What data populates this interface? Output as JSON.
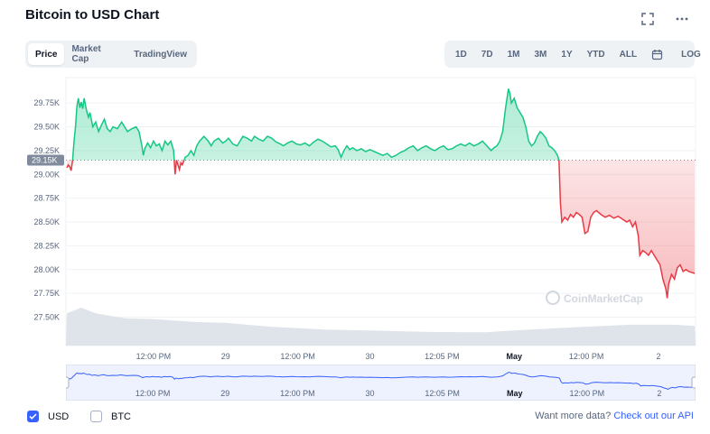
{
  "title": "Bitcoin to USD Chart",
  "icons": {
    "fullscreen": "fullscreen-icon",
    "more": "more-horizontal-icon",
    "calendar": "calendar-icon"
  },
  "tabs": [
    {
      "label": "Price",
      "active": true
    },
    {
      "label": "Market Cap",
      "active": false
    },
    {
      "label": "TradingView",
      "active": false
    }
  ],
  "ranges": [
    "1D",
    "7D",
    "1M",
    "3M",
    "1Y",
    "YTD",
    "ALL"
  ],
  "log_label": "LOG",
  "watermark": "CoinMarketCap",
  "footer": {
    "usd_label": "USD",
    "usd_checked": true,
    "btc_label": "BTC",
    "btc_checked": false,
    "more_text": "Want more data?",
    "more_link": "Check out our API"
  },
  "colors": {
    "up": "#16c784",
    "down": "#ea3943",
    "accent": "#3861fb",
    "volume": "#cfd6e4"
  },
  "chart_data": {
    "type": "line",
    "y_ticks": [
      "29.75K",
      "29.50K",
      "29.25K",
      "29.00K",
      "28.75K",
      "28.50K",
      "28.25K",
      "28.00K",
      "27.75K",
      "27.50K"
    ],
    "y_tick_values": [
      29750,
      29500,
      29250,
      29000,
      28750,
      28500,
      28250,
      28000,
      27750,
      27500
    ],
    "x_ticks": [
      "12:00 PM",
      "29",
      "12:00 PM",
      "30",
      "12:05 PM",
      "May",
      "12:00 PM",
      "2"
    ],
    "x_tick_positions": [
      0.5,
      1.0,
      1.5,
      2.0,
      2.5,
      3.0,
      3.5,
      4.0
    ],
    "x_bold": [
      "May"
    ],
    "reference_price": 29150,
    "reference_label": "29.15K",
    "ylim": [
      27420,
      29960
    ],
    "xlim": [
      -0.1,
      4.25
    ],
    "series": [
      {
        "values": [
          [
            -0.1,
            29070
          ],
          [
            -0.09,
            29100
          ],
          [
            -0.08,
            29080
          ],
          [
            -0.07,
            29040
          ],
          [
            -0.06,
            29150
          ],
          [
            -0.05,
            29350
          ],
          [
            -0.04,
            29500
          ],
          [
            -0.03,
            29720
          ],
          [
            -0.02,
            29800
          ],
          [
            -0.01,
            29700
          ],
          [
            0.0,
            29760
          ],
          [
            0.01,
            29690
          ],
          [
            0.02,
            29800
          ],
          [
            0.03,
            29720
          ],
          [
            0.04,
            29650
          ],
          [
            0.05,
            29600
          ],
          [
            0.06,
            29650
          ],
          [
            0.08,
            29500
          ],
          [
            0.1,
            29550
          ],
          [
            0.12,
            29450
          ],
          [
            0.14,
            29520
          ],
          [
            0.16,
            29580
          ],
          [
            0.18,
            29480
          ],
          [
            0.2,
            29450
          ],
          [
            0.22,
            29500
          ],
          [
            0.25,
            29480
          ],
          [
            0.28,
            29550
          ],
          [
            0.3,
            29500
          ],
          [
            0.32,
            29450
          ],
          [
            0.35,
            29480
          ],
          [
            0.38,
            29500
          ],
          [
            0.4,
            29450
          ],
          [
            0.42,
            29300
          ],
          [
            0.43,
            29200
          ],
          [
            0.44,
            29270
          ],
          [
            0.46,
            29330
          ],
          [
            0.48,
            29280
          ],
          [
            0.5,
            29350
          ],
          [
            0.52,
            29300
          ],
          [
            0.54,
            29320
          ],
          [
            0.56,
            29250
          ],
          [
            0.58,
            29350
          ],
          [
            0.6,
            29310
          ],
          [
            0.62,
            29350
          ],
          [
            0.63,
            29300
          ],
          [
            0.64,
            29250
          ],
          [
            0.65,
            29000
          ],
          [
            0.66,
            29150
          ],
          [
            0.67,
            29100
          ],
          [
            0.68,
            29050
          ],
          [
            0.69,
            29120
          ],
          [
            0.7,
            29100
          ],
          [
            0.72,
            29180
          ],
          [
            0.74,
            29200
          ],
          [
            0.76,
            29250
          ],
          [
            0.78,
            29200
          ],
          [
            0.8,
            29300
          ],
          [
            0.82,
            29350
          ],
          [
            0.85,
            29400
          ],
          [
            0.88,
            29350
          ],
          [
            0.9,
            29300
          ],
          [
            0.92,
            29350
          ],
          [
            0.95,
            29380
          ],
          [
            0.98,
            29330
          ],
          [
            1.0,
            29350
          ],
          [
            1.02,
            29380
          ],
          [
            1.05,
            29320
          ],
          [
            1.08,
            29300
          ],
          [
            1.1,
            29350
          ],
          [
            1.12,
            29400
          ],
          [
            1.15,
            29380
          ],
          [
            1.18,
            29350
          ],
          [
            1.2,
            29400
          ],
          [
            1.23,
            29370
          ],
          [
            1.26,
            29350
          ],
          [
            1.29,
            29400
          ],
          [
            1.32,
            29380
          ],
          [
            1.35,
            29340
          ],
          [
            1.38,
            29320
          ],
          [
            1.4,
            29300
          ],
          [
            1.43,
            29330
          ],
          [
            1.46,
            29350
          ],
          [
            1.49,
            29320
          ],
          [
            1.52,
            29310
          ],
          [
            1.55,
            29330
          ],
          [
            1.58,
            29300
          ],
          [
            1.61,
            29340
          ],
          [
            1.64,
            29370
          ],
          [
            1.67,
            29350
          ],
          [
            1.7,
            29320
          ],
          [
            1.73,
            29290
          ],
          [
            1.76,
            29300
          ],
          [
            1.78,
            29260
          ],
          [
            1.8,
            29180
          ],
          [
            1.82,
            29250
          ],
          [
            1.84,
            29300
          ],
          [
            1.86,
            29260
          ],
          [
            1.88,
            29280
          ],
          [
            1.91,
            29250
          ],
          [
            1.94,
            29270
          ],
          [
            1.97,
            29240
          ],
          [
            2.0,
            29260
          ],
          [
            2.03,
            29240
          ],
          [
            2.06,
            29220
          ],
          [
            2.09,
            29200
          ],
          [
            2.12,
            29220
          ],
          [
            2.15,
            29180
          ],
          [
            2.18,
            29200
          ],
          [
            2.21,
            29230
          ],
          [
            2.24,
            29250
          ],
          [
            2.27,
            29280
          ],
          [
            2.3,
            29300
          ],
          [
            2.33,
            29250
          ],
          [
            2.36,
            29280
          ],
          [
            2.39,
            29300
          ],
          [
            2.42,
            29270
          ],
          [
            2.45,
            29250
          ],
          [
            2.48,
            29280
          ],
          [
            2.51,
            29300
          ],
          [
            2.54,
            29260
          ],
          [
            2.57,
            29270
          ],
          [
            2.6,
            29300
          ],
          [
            2.63,
            29320
          ],
          [
            2.66,
            29300
          ],
          [
            2.69,
            29330
          ],
          [
            2.72,
            29300
          ],
          [
            2.75,
            29320
          ],
          [
            2.78,
            29350
          ],
          [
            2.81,
            29300
          ],
          [
            2.84,
            29250
          ],
          [
            2.86,
            29280
          ],
          [
            2.88,
            29300
          ],
          [
            2.9,
            29350
          ],
          [
            2.92,
            29450
          ],
          [
            2.94,
            29700
          ],
          [
            2.96,
            29900
          ],
          [
            2.97,
            29850
          ],
          [
            2.98,
            29750
          ],
          [
            3.0,
            29800
          ],
          [
            3.02,
            29700
          ],
          [
            3.04,
            29650
          ],
          [
            3.06,
            29600
          ],
          [
            3.08,
            29500
          ],
          [
            3.1,
            29350
          ],
          [
            3.12,
            29300
          ],
          [
            3.14,
            29330
          ],
          [
            3.16,
            29400
          ],
          [
            3.18,
            29450
          ],
          [
            3.2,
            29420
          ],
          [
            3.22,
            29380
          ],
          [
            3.24,
            29300
          ],
          [
            3.26,
            29280
          ],
          [
            3.28,
            29250
          ],
          [
            3.3,
            29200
          ],
          [
            3.31,
            29150
          ],
          [
            3.32,
            28700
          ],
          [
            3.33,
            28500
          ],
          [
            3.35,
            28550
          ],
          [
            3.37,
            28520
          ],
          [
            3.39,
            28580
          ],
          [
            3.41,
            28550
          ],
          [
            3.43,
            28600
          ],
          [
            3.45,
            28580
          ],
          [
            3.47,
            28550
          ],
          [
            3.49,
            28380
          ],
          [
            3.51,
            28400
          ],
          [
            3.53,
            28550
          ],
          [
            3.55,
            28600
          ],
          [
            3.57,
            28620
          ],
          [
            3.6,
            28580
          ],
          [
            3.63,
            28550
          ],
          [
            3.66,
            28570
          ],
          [
            3.69,
            28540
          ],
          [
            3.72,
            28560
          ],
          [
            3.75,
            28530
          ],
          [
            3.78,
            28500
          ],
          [
            3.8,
            28520
          ],
          [
            3.82,
            28450
          ],
          [
            3.84,
            28500
          ],
          [
            3.86,
            28350
          ],
          [
            3.87,
            28150
          ],
          [
            3.89,
            28200
          ],
          [
            3.91,
            28180
          ],
          [
            3.93,
            28150
          ],
          [
            3.95,
            28200
          ],
          [
            3.97,
            28150
          ],
          [
            3.99,
            28100
          ],
          [
            4.01,
            28050
          ],
          [
            4.03,
            27900
          ],
          [
            4.05,
            27800
          ],
          [
            4.06,
            27700
          ],
          [
            4.07,
            27850
          ],
          [
            4.09,
            27950
          ],
          [
            4.11,
            27900
          ],
          [
            4.13,
            28020
          ],
          [
            4.15,
            28050
          ],
          [
            4.17,
            27980
          ],
          [
            4.19,
            28000
          ],
          [
            4.21,
            27980
          ],
          [
            4.23,
            27970
          ],
          [
            4.25,
            27960
          ]
        ]
      }
    ],
    "volume_relative": [
      [
        -0.1,
        0.85
      ],
      [
        0.0,
        1.0
      ],
      [
        0.1,
        0.85
      ],
      [
        0.3,
        0.72
      ],
      [
        0.5,
        0.7
      ],
      [
        0.8,
        0.62
      ],
      [
        1.0,
        0.6
      ],
      [
        1.3,
        0.5
      ],
      [
        1.7,
        0.42
      ],
      [
        2.0,
        0.4
      ],
      [
        2.4,
        0.36
      ],
      [
        2.8,
        0.35
      ],
      [
        3.0,
        0.4
      ],
      [
        3.4,
        0.48
      ],
      [
        3.8,
        0.55
      ],
      [
        4.1,
        0.55
      ],
      [
        4.25,
        0.52
      ]
    ],
    "grid": true
  }
}
